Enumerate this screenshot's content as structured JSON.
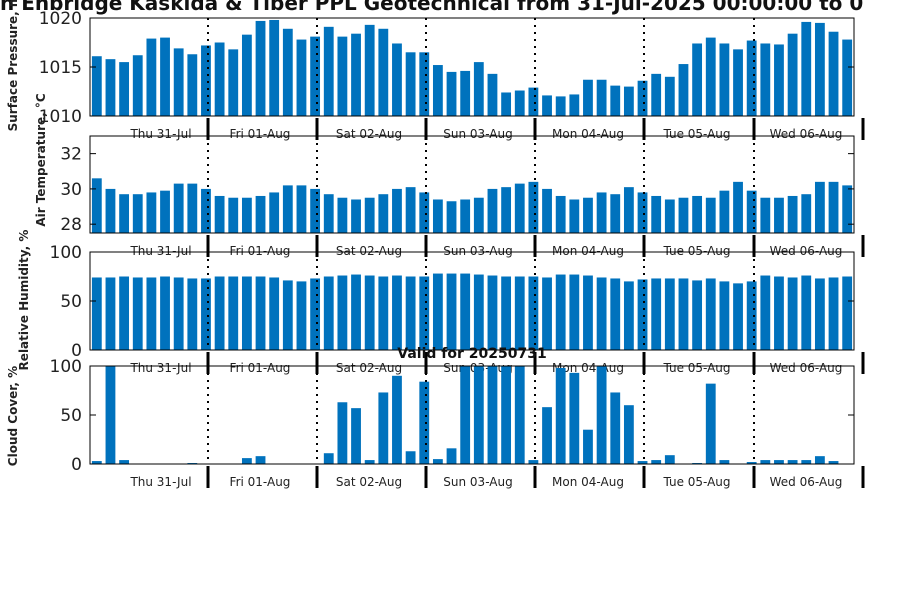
{
  "title": "n Enbridge  Kaskida & Tiber PPL Geotechnical from 31-Jul-2025 00:00:00 to 0",
  "bar_color": "#0072bd",
  "chart_data": [
    {
      "type": "bar",
      "ylabel": "Surface Pressure, m",
      "ylim": [
        1010,
        1020
      ],
      "yticks": [
        1010,
        1015,
        1020
      ],
      "x_ticklabels": [
        "Thu 31-Jul",
        "Fri 01-Aug",
        "Sat 02-Aug",
        "Sun 03-Aug",
        "Mon 04-Aug",
        "Tue 05-Aug",
        "Wed 06-Aug"
      ],
      "values": [
        1016.1,
        1015.8,
        1015.5,
        1016.2,
        1017.9,
        1018.0,
        1016.9,
        1016.3,
        1017.2,
        1017.5,
        1016.8,
        1018.3,
        1019.7,
        1019.8,
        1018.9,
        1017.8,
        1018.1,
        1019.1,
        1018.1,
        1018.4,
        1019.3,
        1018.9,
        1017.4,
        1016.5,
        1016.5,
        1015.2,
        1014.5,
        1014.6,
        1015.5,
        1014.3,
        1012.4,
        1012.6,
        1012.9,
        1012.1,
        1012.0,
        1012.2,
        1013.7,
        1013.7,
        1013.1,
        1013.0,
        1013.6,
        1014.3,
        1014.0,
        1015.3,
        1017.4,
        1018.0,
        1017.4,
        1016.8,
        1017.7,
        1017.4,
        1017.3,
        1018.4,
        1019.6,
        1019.5,
        1018.6,
        1017.8
      ]
    },
    {
      "type": "bar",
      "ylabel": "Air Temperature, °C",
      "ylim": [
        27.5,
        33
      ],
      "yticks": [
        28,
        30,
        32
      ],
      "x_ticklabels": [
        "Thu 31-Jul",
        "Fri 01-Aug",
        "Sat 02-Aug",
        "Sun 03-Aug",
        "Mon 04-Aug",
        "Tue 05-Aug",
        "Wed 06-Aug"
      ],
      "values": [
        30.6,
        30.0,
        29.7,
        29.7,
        29.8,
        29.9,
        30.3,
        30.3,
        30.0,
        29.6,
        29.5,
        29.5,
        29.6,
        29.8,
        30.2,
        30.2,
        30.0,
        29.7,
        29.5,
        29.4,
        29.5,
        29.7,
        30.0,
        30.1,
        29.8,
        29.4,
        29.3,
        29.4,
        29.5,
        30.0,
        30.1,
        30.3,
        30.4,
        30.0,
        29.6,
        29.4,
        29.5,
        29.8,
        29.7,
        30.1,
        29.8,
        29.6,
        29.4,
        29.5,
        29.6,
        29.5,
        29.9,
        30.4,
        29.9,
        29.5,
        29.5,
        29.6,
        29.7,
        30.4,
        30.4,
        30.2
      ]
    },
    {
      "type": "bar",
      "ylabel": "Relative Humidity, %",
      "ylim": [
        0,
        100
      ],
      "yticks": [
        0,
        50,
        100
      ],
      "x_ticklabels": [
        "Thu 31-Jul",
        "Fri 01-Aug",
        "Sat 02-Aug",
        "Sun 03-Aug",
        "Mon 04-Aug",
        "Tue 05-Aug",
        "Wed 06-Aug"
      ],
      "values": [
        74,
        74,
        75,
        74,
        74,
        75,
        74,
        73,
        73,
        75,
        75,
        75,
        75,
        74,
        71,
        70,
        73,
        75,
        76,
        77,
        76,
        75,
        76,
        75,
        75,
        78,
        78,
        78,
        77,
        76,
        75,
        75,
        75,
        74,
        77,
        77,
        76,
        74,
        73,
        70,
        72,
        73,
        73,
        73,
        71,
        73,
        70,
        68,
        70,
        76,
        75,
        74,
        76,
        73,
        74,
        75
      ]
    },
    {
      "type": "bar",
      "title": "Valid for 20250731",
      "ylabel": "Cloud Cover, %",
      "ylim": [
        0,
        100
      ],
      "yticks": [
        0,
        50,
        100
      ],
      "x_ticklabels": [
        "Thu 31-Jul",
        "Fri 01-Aug",
        "Sat 02-Aug",
        "Sun 03-Aug",
        "Mon 04-Aug",
        "Tue 05-Aug",
        "Wed 06-Aug"
      ],
      "values": [
        3,
        100,
        4,
        0,
        0,
        0,
        0,
        1,
        0,
        0,
        0,
        6,
        8,
        0,
        0,
        0,
        0,
        11,
        63,
        57,
        4,
        73,
        90,
        13,
        84,
        5,
        16,
        100,
        100,
        100,
        100,
        100,
        4,
        58,
        98,
        93,
        35,
        100,
        73,
        60,
        3,
        4,
        9,
        0,
        1,
        82,
        4,
        0,
        2,
        4,
        4,
        4,
        4,
        8,
        3,
        0
      ]
    }
  ]
}
